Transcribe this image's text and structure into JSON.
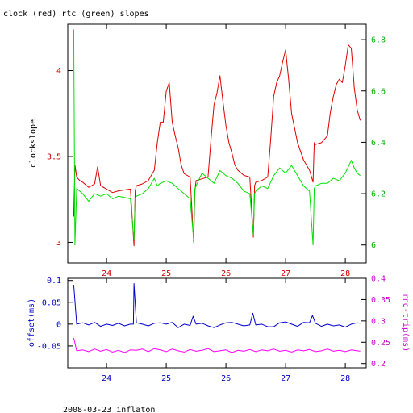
{
  "chart_data": [
    {
      "type": "line",
      "title": "clock (red) rtc (green) slopes",
      "xlabel": "",
      "ylabel": "clockslope",
      "y2label": "",
      "xlim": [
        23.35,
        28.35
      ],
      "ylim": [
        2.88,
        4.27
      ],
      "y2lim": [
        5.93,
        6.86
      ],
      "x_ticks": [
        "24",
        "25",
        "26",
        "27",
        "28"
      ],
      "y_ticks": [
        "3",
        "3.5",
        "4"
      ],
      "y2_ticks": [
        "6",
        "6.2",
        "6.4",
        "6.6",
        "6.8"
      ],
      "grid": false,
      "series": [
        {
          "color": "#e00000",
          "axis": "left",
          "x": [
            23.45,
            23.47,
            23.5,
            23.55,
            23.6,
            23.7,
            23.8,
            23.85,
            23.9,
            24.0,
            24.1,
            24.2,
            24.4,
            24.46,
            24.48,
            24.5,
            24.6,
            24.7,
            24.8,
            24.85,
            24.9,
            24.95,
            25.0,
            25.05,
            25.1,
            25.15,
            25.2,
            25.25,
            25.3,
            25.4,
            25.46,
            25.48,
            25.5,
            25.6,
            25.7,
            25.75,
            25.8,
            25.85,
            25.9,
            25.95,
            26.0,
            26.05,
            26.1,
            26.15,
            26.2,
            26.3,
            26.4,
            26.46,
            26.48,
            26.5,
            26.6,
            26.7,
            26.75,
            26.8,
            26.85,
            26.9,
            26.95,
            27.0,
            27.05,
            27.1,
            27.2,
            27.3,
            27.4,
            27.46,
            27.48,
            27.5,
            27.6,
            27.7,
            27.75,
            27.8,
            27.85,
            27.9,
            27.95,
            28.0,
            28.05,
            28.1,
            28.15,
            28.2,
            28.25
          ],
          "y": [
            3.15,
            3.45,
            3.38,
            3.36,
            3.35,
            3.32,
            3.34,
            3.44,
            3.33,
            3.31,
            3.29,
            3.3,
            3.31,
            2.98,
            3.3,
            3.33,
            3.34,
            3.36,
            3.42,
            3.58,
            3.7,
            3.7,
            3.88,
            3.93,
            3.7,
            3.62,
            3.55,
            3.45,
            3.4,
            3.38,
            3.0,
            3.3,
            3.36,
            3.37,
            3.38,
            3.6,
            3.8,
            3.87,
            3.97,
            3.82,
            3.68,
            3.58,
            3.52,
            3.45,
            3.42,
            3.39,
            3.38,
            3.03,
            3.33,
            3.35,
            3.36,
            3.38,
            3.6,
            3.85,
            3.93,
            3.97,
            4.05,
            4.12,
            3.95,
            3.75,
            3.58,
            3.48,
            3.42,
            3.35,
            3.58,
            3.57,
            3.58,
            3.62,
            3.76,
            3.85,
            3.92,
            3.95,
            3.93,
            4.03,
            4.15,
            4.13,
            3.9,
            3.77,
            3.71
          ]
        },
        {
          "color": "#00e000",
          "axis": "right",
          "x": [
            23.45,
            23.47,
            23.5,
            23.55,
            23.6,
            23.7,
            23.8,
            23.9,
            24.0,
            24.1,
            24.2,
            24.4,
            24.46,
            24.48,
            24.5,
            24.6,
            24.7,
            24.8,
            24.85,
            24.9,
            25.0,
            25.1,
            25.2,
            25.3,
            25.4,
            25.46,
            25.48,
            25.5,
            25.6,
            25.7,
            25.8,
            25.9,
            26.0,
            26.1,
            26.2,
            26.3,
            26.4,
            26.46,
            26.48,
            26.5,
            26.6,
            26.7,
            26.8,
            26.9,
            27.0,
            27.1,
            27.2,
            27.3,
            27.4,
            27.46,
            27.48,
            27.5,
            27.6,
            27.7,
            27.8,
            27.9,
            28.0,
            28.1,
            28.15,
            28.2,
            28.25
          ],
          "y": [
            6.84,
            6.0,
            6.22,
            6.21,
            6.2,
            6.17,
            6.2,
            6.19,
            6.2,
            6.18,
            6.19,
            6.18,
            6.02,
            6.18,
            6.19,
            6.2,
            6.22,
            6.26,
            6.23,
            6.24,
            6.25,
            6.24,
            6.22,
            6.2,
            6.18,
            6.02,
            6.22,
            6.23,
            6.28,
            6.26,
            6.24,
            6.29,
            6.27,
            6.26,
            6.24,
            6.21,
            6.2,
            6.04,
            6.2,
            6.21,
            6.23,
            6.22,
            6.27,
            6.3,
            6.28,
            6.31,
            6.27,
            6.23,
            6.21,
            6.0,
            6.22,
            6.23,
            6.24,
            6.24,
            6.26,
            6.25,
            6.28,
            6.33,
            6.3,
            6.28,
            6.27
          ]
        }
      ]
    },
    {
      "type": "line",
      "title": "",
      "xlabel": "",
      "ylabel": "offset(ms)",
      "y2label": "rnd-trip(ms)",
      "xlim": [
        23.35,
        28.35
      ],
      "ylim": [
        -0.1,
        0.105
      ],
      "y2lim": [
        0.19,
        0.4
      ],
      "x_ticks": [
        "24",
        "25",
        "26",
        "27",
        "28"
      ],
      "y_ticks": [
        "0.1",
        "0.05",
        "0",
        "-0.05"
      ],
      "y2_ticks": [
        "0.4",
        "0.35",
        "0.3",
        "0.25",
        "0.2"
      ],
      "grid": false,
      "series": [
        {
          "color": "#0000d0",
          "axis": "left",
          "x": [
            23.45,
            23.5,
            23.6,
            23.7,
            23.8,
            23.9,
            24.0,
            24.1,
            24.2,
            24.3,
            24.4,
            24.45,
            24.46,
            24.5,
            24.6,
            24.7,
            24.8,
            24.9,
            25.0,
            25.1,
            25.2,
            25.3,
            25.4,
            25.45,
            25.5,
            25.6,
            25.7,
            25.8,
            25.9,
            26.0,
            26.1,
            26.2,
            26.3,
            26.4,
            26.45,
            26.5,
            26.6,
            26.7,
            26.8,
            26.9,
            27.0,
            27.1,
            27.2,
            27.3,
            27.4,
            27.45,
            27.5,
            27.6,
            27.7,
            27.8,
            27.9,
            28.0,
            28.1,
            28.2,
            28.25
          ],
          "y": [
            0.09,
            0.0,
            0.003,
            -0.002,
            0.004,
            -0.005,
            0.0,
            -0.003,
            0.002,
            -0.004,
            0.0,
            0.0,
            0.093,
            0.003,
            0.0,
            -0.004,
            0.002,
            0.003,
            0.0,
            0.004,
            -0.008,
            0.0,
            -0.003,
            0.018,
            0.0,
            0.002,
            -0.004,
            -0.008,
            -0.002,
            0.003,
            0.004,
            0.0,
            -0.004,
            -0.002,
            0.025,
            -0.002,
            0.0,
            -0.006,
            -0.006,
            0.003,
            0.005,
            0.0,
            -0.005,
            0.004,
            0.003,
            0.02,
            0.002,
            -0.005,
            0.0,
            -0.004,
            -0.002,
            -0.007,
            0.0,
            0.003,
            0.002
          ]
        },
        {
          "color": "#ff00ff",
          "axis": "right",
          "x": [
            23.45,
            23.5,
            23.6,
            23.7,
            23.8,
            23.9,
            24.0,
            24.1,
            24.2,
            24.3,
            24.4,
            24.5,
            24.6,
            24.7,
            24.8,
            24.9,
            25.0,
            25.1,
            25.2,
            25.3,
            25.4,
            25.5,
            25.6,
            25.7,
            25.8,
            25.9,
            26.0,
            26.1,
            26.2,
            26.3,
            26.4,
            26.5,
            26.6,
            26.7,
            26.8,
            26.9,
            27.0,
            27.1,
            27.2,
            27.3,
            27.4,
            27.5,
            27.6,
            27.7,
            27.8,
            27.9,
            28.0,
            28.1,
            28.2,
            28.25
          ],
          "y": [
            0.26,
            0.23,
            0.232,
            0.228,
            0.234,
            0.229,
            0.233,
            0.227,
            0.231,
            0.226,
            0.232,
            0.231,
            0.234,
            0.228,
            0.235,
            0.232,
            0.228,
            0.234,
            0.23,
            0.227,
            0.233,
            0.229,
            0.231,
            0.235,
            0.228,
            0.23,
            0.232,
            0.226,
            0.231,
            0.229,
            0.233,
            0.228,
            0.232,
            0.23,
            0.234,
            0.229,
            0.231,
            0.227,
            0.232,
            0.23,
            0.233,
            0.228,
            0.23,
            0.234,
            0.229,
            0.231,
            0.228,
            0.232,
            0.23,
            0.229
          ]
        }
      ]
    }
  ],
  "footer": {
    "caption": "2008-03-23 inflaton"
  },
  "colors": {
    "red_axis": "#d00000",
    "green_axis": "#00b000",
    "blue_axis": "#0000c8",
    "magenta_axis": "#d000d0"
  }
}
